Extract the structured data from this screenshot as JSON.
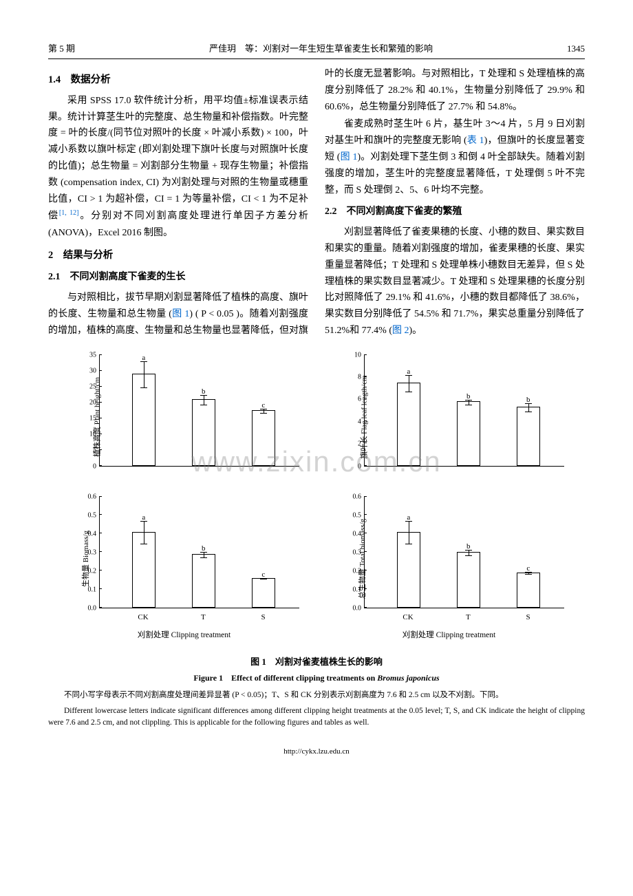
{
  "header": {
    "issue": "第 5 期",
    "center": "严佳玥　等：刈割对一年生短生草雀麦生长和繁殖的影响",
    "page": "1345"
  },
  "watermark": "www.zixin.com.cn",
  "sections": {
    "s1_4": "1.4　数据分析",
    "p1": "采用 SPSS 17.0 软件统计分析，用平均值±标准误表示结果。统计计算茎生叶的完整度、总生物量和补偿指数。叶完整度 = 叶的长度/(同节位对照叶的长度 × 叶减小系数) × 100，叶减小系数以旗叶标定 (即刈割处理下旗叶长度与对照旗叶长度的比值)；总生物量 = 刈割部分生物量 + 现存生物量；补偿指数 (compensation index, CI) 为刈割处理与对照的生物量或穗重比值，CI > 1 为超补偿，CI = 1 为等量补偿，CI < 1 为不足补偿",
    "p1_ref": "[1, 12]",
    "p1_tail": "。分别对不同刈割高度处理进行单因子方差分析 (ANOVA)，Excel 2016 制图。",
    "s2": "2　结果与分析",
    "s2_1": "2.1　不同刈割高度下雀麦的生长",
    "p2a": "与对照相比，拔节早期刈割显著降低了植株的高度、旗叶的长度、生物量和总生物量 (",
    "fig1_link": "图 1",
    "p2b": ") ( P < 0.05 )。随着刈割强度的增加，植株的高度、生物量和总生物量也显著降低，但对旗叶的长度无显著影响。与对照相比，T 处理和 S 处理植株的高度分别降低了 28.2% 和 40.1%，生物量分别降低了 29.9% 和 60.6%，总生物量分别降低了 27.7% 和 54.8%。",
    "p3a": "雀麦成熟时茎生叶 6 片，基生叶 3～4 片，5 月 9 日刈割对基生叶和旗叶的完整度无影响 (",
    "tab1_link": "表 1",
    "p3b": ")，但旗叶的长度显著变短 (",
    "p3c": ")。刈割处理下茎生倒 3 和倒 4 叶全部缺失。随着刈割强度的增加，茎生叶的完整度显著降低，T 处理倒 5 叶不完整，而 S 处理倒 2、5、6 叶均不完整。",
    "s2_2": "2.2　不同刈割高度下雀麦的繁殖",
    "p4a": "刈割显著降低了雀麦果穗的长度、小穗的数目、果实数目和果实的重量。随着刈割强度的增加，雀麦果穗的长度、果实重量显著降低；T 处理和 S 处理单株小穗数目无差异，但 S 处理植株的果实数目显著减少。T 处理和 S 处理果穗的长度分别比对照降低了 29.1% 和 41.6%，小穗的数目都降低了 38.6%，果实数目分别降低了 54.5% 和 71.7%，果实总重量分别降低了 51.2%和 77.4% (",
    "fig2_link": "图 2",
    "p4b": ")。"
  },
  "charts": {
    "categories": [
      "CK",
      "T",
      "S"
    ],
    "x_positions_pct": [
      22,
      52,
      82
    ],
    "x_axis_title": "刈割处理 Clipping treatment",
    "panels": [
      {
        "ylabel": "植株高度 Plant height/cm",
        "ymax": 35,
        "ytick_step": 5,
        "values": [
          29,
          21,
          17.5
        ],
        "err": [
          5,
          2.5,
          1.5
        ],
        "letters": [
          "a",
          "b",
          "c"
        ]
      },
      {
        "ylabel": "旗叶长 Flag leaf length/cm",
        "ymax": 10,
        "ytick_step": 2,
        "values": [
          7.5,
          5.8,
          5.3
        ],
        "err": [
          1.0,
          0.4,
          0.7
        ],
        "letters": [
          "a",
          "b",
          "b"
        ]
      },
      {
        "ylabel": "生物量 Biomass/g",
        "ymax": 0.6,
        "ytick_step": 0.1,
        "decimals": 1,
        "values": [
          0.41,
          0.29,
          0.16
        ],
        "err": [
          0.09,
          0.03,
          0.01
        ],
        "letters": [
          "a",
          "b",
          "c"
        ]
      },
      {
        "ylabel": "总生物量 Total biomass/g",
        "ymax": 0.6,
        "ytick_step": 0.1,
        "decimals": 1,
        "values": [
          0.41,
          0.3,
          0.19
        ],
        "err": [
          0.09,
          0.03,
          0.02
        ],
        "letters": [
          "a",
          "b",
          "c"
        ]
      }
    ],
    "bar_color": "#ffffff",
    "bar_border": "#000000"
  },
  "figure1": {
    "caption_zh": "图 1　刈割对雀麦植株生长的影响",
    "caption_en_a": "Figure 1　Effect of different clipping treatments on ",
    "caption_en_i": "Bromus japonicus",
    "note_zh": "不同小写字母表示不同刈割高度处理间差异显著 (P < 0.05)；T、S 和 CK 分别表示刈割高度为 7.6 和 2.5 cm 以及不刈割。下同。",
    "note_en": "Different lowercase letters indicate significant differences among different clipping height treatments at the 0.05 level; T, S, and CK indicate the height of clipping were 7.6 and 2.5 cm, and not clippling. This is applicable for the following figures and tables as well."
  },
  "footer_url": "http://cykx.lzu.edu.cn"
}
